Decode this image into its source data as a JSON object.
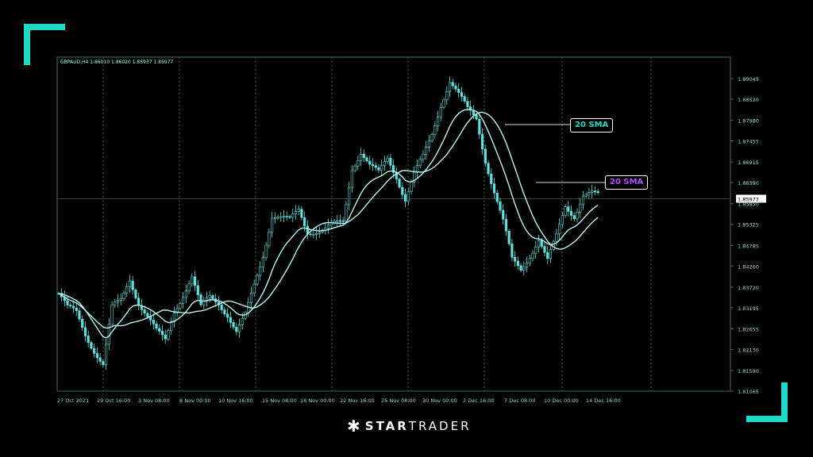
{
  "chart_data": {
    "type": "candlestick",
    "header": "GBPAUD,H4  1.86010  1.86020  1.85937  1.85977",
    "y_ticks": [
      "1.89045",
      "1.88520",
      "1.87980",
      "1.87455",
      "1.86915",
      "1.86390",
      "1.85850",
      "1.85325",
      "1.84785",
      "1.84260",
      "1.83720",
      "1.83195",
      "1.82655",
      "1.82130",
      "1.81590",
      "1.81065"
    ],
    "ylim": [
      1.81065,
      1.89045
    ],
    "current_price": "1.85977",
    "x_ticks": [
      "27 Oct 2021",
      "29 Oct 16:00",
      "3 Nov 08:00",
      "8 Nov 00:00",
      "10 Nov 16:00",
      "15 Nov 08:00",
      "18 Nov 00:00",
      "22 Nov 16:00",
      "25 Nov 08:00",
      "30 Nov 00:00",
      "2 Dec 16:00",
      "7 Dec 08:00",
      "10 Dec 00:00",
      "14 Dec 16:00"
    ],
    "close_keypoints": [
      1.8356,
      1.8315,
      1.8305,
      1.8255,
      1.8214,
      1.8173,
      1.8315,
      1.8336,
      1.8396,
      1.8336,
      1.8295,
      1.8255,
      1.8234,
      1.8315,
      1.8356,
      1.8396,
      1.8315,
      1.8346,
      1.8336,
      1.8305,
      1.8255,
      1.8295,
      1.8376,
      1.8457,
      1.8558,
      1.8548,
      1.8538,
      1.8568,
      1.8518,
      1.8518,
      1.8518,
      1.8528,
      1.8538,
      1.868,
      1.872,
      1.868,
      1.8659,
      1.87,
      1.8659,
      1.8599,
      1.8659,
      1.87,
      1.8761,
      1.8842,
      1.8902,
      1.8862,
      1.8821,
      1.8801,
      1.87,
      1.8619,
      1.8538,
      1.8437,
      1.8416,
      1.8457,
      1.8497,
      1.8437,
      1.8497,
      1.8579,
      1.8558,
      1.8609,
      1.8609,
      1.8598
    ],
    "grid": "vertical dotted",
    "colors": {
      "candles": "#5ee0dc",
      "sma": "#b8f5f0",
      "axis": "#3d6a6a",
      "accent": "#1ed8c8",
      "purple": "#b44dff"
    },
    "annotations": [
      {
        "text": "20 SMA",
        "color": "#1ed8c8"
      },
      {
        "text": "20 SMA",
        "color": "#b44dff"
      }
    ]
  },
  "brand": {
    "star": "✱",
    "bold": "STAR",
    "light": "TRADER"
  }
}
